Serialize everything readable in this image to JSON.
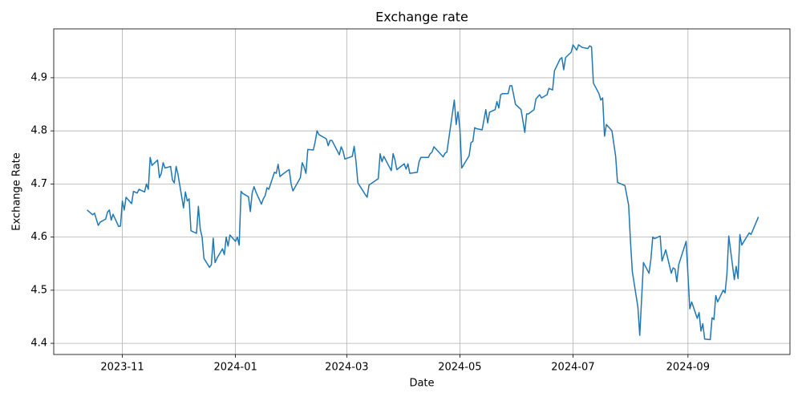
{
  "chart_data": {
    "type": "line",
    "title": "Exchange rate",
    "x_label": "Date",
    "y_label": "Exchange Rate",
    "color": "#1f77b4",
    "grid": true,
    "xlim": [
      "2023-09-25",
      "2024-10-26"
    ],
    "ylim": [
      4.379,
      4.992
    ],
    "xticks": [
      {
        "value": "2023-11-01",
        "label": "2023-11"
      },
      {
        "value": "2024-01-01",
        "label": "2024-01"
      },
      {
        "value": "2024-03-01",
        "label": "2024-03"
      },
      {
        "value": "2024-05-01",
        "label": "2024-05"
      },
      {
        "value": "2024-07-01",
        "label": "2024-07"
      },
      {
        "value": "2024-09-01",
        "label": "2024-09"
      }
    ],
    "yticks": [
      4.4,
      4.5,
      4.6,
      4.7,
      4.8,
      4.9
    ],
    "x": [
      "2023-10-13",
      "2023-10-16",
      "2023-10-17",
      "2023-10-19",
      "2023-10-20",
      "2023-10-23",
      "2023-10-24",
      "2023-10-25",
      "2023-10-26",
      "2023-10-27",
      "2023-10-30",
      "2023-10-31",
      "2023-11-01",
      "2023-11-02",
      "2023-11-03",
      "2023-11-06",
      "2023-11-07",
      "2023-11-09",
      "2023-11-10",
      "2023-11-13",
      "2023-11-14",
      "2023-11-15",
      "2023-11-16",
      "2023-11-17",
      "2023-11-20",
      "2023-11-21",
      "2023-11-22",
      "2023-11-23",
      "2023-11-24",
      "2023-11-27",
      "2023-11-28",
      "2023-11-29",
      "2023-11-30",
      "2023-12-01",
      "2023-12-04",
      "2023-12-05",
      "2023-12-06",
      "2023-12-07",
      "2023-12-08",
      "2023-12-11",
      "2023-12-12",
      "2023-12-13",
      "2023-12-14",
      "2023-12-15",
      "2023-12-18",
      "2023-12-19",
      "2023-12-20",
      "2023-12-21",
      "2023-12-22",
      "2023-12-25",
      "2023-12-26",
      "2023-12-27",
      "2023-12-28",
      "2023-12-29",
      "2024-01-01",
      "2024-01-02",
      "2024-01-03",
      "2024-01-04",
      "2024-01-05",
      "2024-01-08",
      "2024-01-09",
      "2024-01-10",
      "2024-01-11",
      "2024-01-12",
      "2024-01-15",
      "2024-01-16",
      "2024-01-17",
      "2024-01-18",
      "2024-01-19",
      "2024-01-22",
      "2024-01-23",
      "2024-01-24",
      "2024-01-25",
      "2024-01-26",
      "2024-01-29",
      "2024-01-30",
      "2024-01-31",
      "2024-02-01",
      "2024-02-05",
      "2024-02-06",
      "2024-02-07",
      "2024-02-08",
      "2024-02-09",
      "2024-02-12",
      "2024-02-13",
      "2024-02-14",
      "2024-02-15",
      "2024-02-19",
      "2024-02-20",
      "2024-02-21",
      "2024-02-22",
      "2024-02-26",
      "2024-02-27",
      "2024-02-28",
      "2024-02-29",
      "2024-03-04",
      "2024-03-05",
      "2024-03-06",
      "2024-03-07",
      "2024-03-11",
      "2024-03-12",
      "2024-03-13",
      "2024-03-18",
      "2024-03-19",
      "2024-03-20",
      "2024-03-21",
      "2024-03-25",
      "2024-03-26",
      "2024-03-27",
      "2024-03-28",
      "2024-04-01",
      "2024-04-02",
      "2024-04-03",
      "2024-04-04",
      "2024-04-08",
      "2024-04-09",
      "2024-04-10",
      "2024-04-14",
      "2024-04-15",
      "2024-04-16",
      "2024-04-17",
      "2024-04-22",
      "2024-04-23",
      "2024-04-24",
      "2024-04-28",
      "2024-04-29",
      "2024-04-30",
      "2024-05-01",
      "2024-05-02",
      "2024-05-06",
      "2024-05-07",
      "2024-05-08",
      "2024-05-09",
      "2024-05-10",
      "2024-05-13",
      "2024-05-15",
      "2024-05-16",
      "2024-05-17",
      "2024-05-20",
      "2024-05-21",
      "2024-05-22",
      "2024-05-23",
      "2024-05-24",
      "2024-05-27",
      "2024-05-28",
      "2024-05-29",
      "2024-05-31",
      "2024-06-03",
      "2024-06-05",
      "2024-06-06",
      "2024-06-07",
      "2024-06-10",
      "2024-06-11",
      "2024-06-13",
      "2024-06-14",
      "2024-06-17",
      "2024-06-18",
      "2024-06-20",
      "2024-06-21",
      "2024-06-24",
      "2024-06-25",
      "2024-06-26",
      "2024-06-27",
      "2024-06-30",
      "2024-07-01",
      "2024-07-03",
      "2024-07-04",
      "2024-07-06",
      "2024-07-09",
      "2024-07-10",
      "2024-07-11",
      "2024-07-12",
      "2024-07-15",
      "2024-07-16",
      "2024-07-17",
      "2024-07-18",
      "2024-07-19",
      "2024-07-22",
      "2024-07-24",
      "2024-07-25",
      "2024-07-29",
      "2024-07-31",
      "2024-08-01",
      "2024-08-02",
      "2024-08-05",
      "2024-08-06",
      "2024-08-08",
      "2024-08-11",
      "2024-08-12",
      "2024-08-13",
      "2024-08-14",
      "2024-08-17",
      "2024-08-18",
      "2024-08-20",
      "2024-08-23",
      "2024-08-24",
      "2024-08-25",
      "2024-08-26",
      "2024-08-27",
      "2024-08-31",
      "2024-09-02",
      "2024-09-03",
      "2024-09-06",
      "2024-09-07",
      "2024-09-08",
      "2024-09-09",
      "2024-09-10",
      "2024-09-13",
      "2024-09-14",
      "2024-09-15",
      "2024-09-16",
      "2024-09-17",
      "2024-09-20",
      "2024-09-21",
      "2024-09-22",
      "2024-09-23",
      "2024-09-26",
      "2024-09-27",
      "2024-09-28",
      "2024-09-29",
      "2024-09-30",
      "2024-10-04",
      "2024-10-05",
      "2024-10-09"
    ],
    "values": [
      4.651,
      4.642,
      4.645,
      4.622,
      4.628,
      4.634,
      4.647,
      4.651,
      4.632,
      4.643,
      4.62,
      4.621,
      4.668,
      4.651,
      4.675,
      4.663,
      4.686,
      4.683,
      4.69,
      4.685,
      4.7,
      4.69,
      4.75,
      4.735,
      4.745,
      4.712,
      4.72,
      4.74,
      4.73,
      4.733,
      4.708,
      4.702,
      4.733,
      4.718,
      4.655,
      4.685,
      4.668,
      4.672,
      4.612,
      4.607,
      4.658,
      4.615,
      4.6,
      4.56,
      4.543,
      4.548,
      4.598,
      4.552,
      4.56,
      4.578,
      4.567,
      4.6,
      4.583,
      4.604,
      4.592,
      4.6,
      4.585,
      4.686,
      4.682,
      4.676,
      4.648,
      4.683,
      4.695,
      4.685,
      4.662,
      4.672,
      4.678,
      4.693,
      4.69,
      4.722,
      4.72,
      4.737,
      4.714,
      4.717,
      4.725,
      4.727,
      4.7,
      4.687,
      4.712,
      4.74,
      4.732,
      4.72,
      4.765,
      4.764,
      4.78,
      4.8,
      4.793,
      4.785,
      4.772,
      4.782,
      4.782,
      4.755,
      4.77,
      4.762,
      4.747,
      4.752,
      4.771,
      4.742,
      4.702,
      4.68,
      4.675,
      4.698,
      4.71,
      4.757,
      4.742,
      4.752,
      4.725,
      4.757,
      4.745,
      4.727,
      4.738,
      4.728,
      4.738,
      4.72,
      4.722,
      4.742,
      4.75,
      4.75,
      4.757,
      4.76,
      4.77,
      4.751,
      4.758,
      4.76,
      4.858,
      4.812,
      4.836,
      4.805,
      4.73,
      4.753,
      4.778,
      4.78,
      4.806,
      4.804,
      4.802,
      4.84,
      4.815,
      4.835,
      4.84,
      4.855,
      4.843,
      4.868,
      4.87,
      4.87,
      4.885,
      4.885,
      4.85,
      4.84,
      4.797,
      4.832,
      4.832,
      4.84,
      4.86,
      4.868,
      4.862,
      4.868,
      4.88,
      4.877,
      4.913,
      4.935,
      4.938,
      4.915,
      4.938,
      4.948,
      4.962,
      4.952,
      4.962,
      4.957,
      4.955,
      4.96,
      4.958,
      4.89,
      4.87,
      4.858,
      4.862,
      4.79,
      4.812,
      4.8,
      4.752,
      4.703,
      4.697,
      4.66,
      4.592,
      4.535,
      4.468,
      4.415,
      4.552,
      4.532,
      4.558,
      4.6,
      4.597,
      4.602,
      4.555,
      4.576,
      4.532,
      4.542,
      4.54,
      4.516,
      4.548,
      4.592,
      4.465,
      4.478,
      4.447,
      4.458,
      4.423,
      4.437,
      4.408,
      4.407,
      4.448,
      4.445,
      4.49,
      4.478,
      4.5,
      4.495,
      4.53,
      4.602,
      4.52,
      4.545,
      4.522,
      4.605,
      4.585,
      4.608,
      4.605,
      4.638
    ]
  }
}
